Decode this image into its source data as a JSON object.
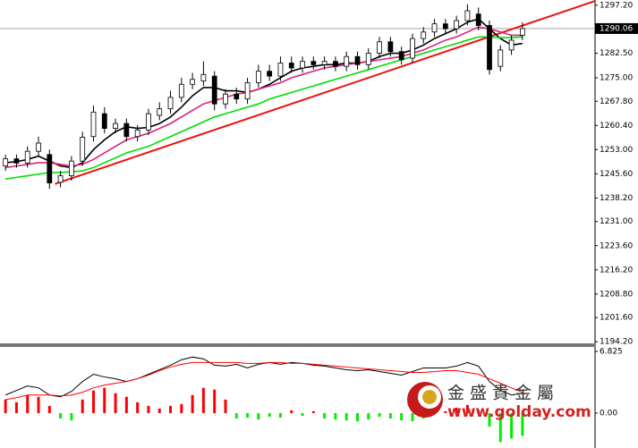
{
  "chart_data": [
    {
      "type": "candlestick",
      "xlim": [
        -0.5,
        53.6
      ],
      "ylim": [
        1193.7,
        1298.8
      ],
      "yticks": [
        {
          "value": 1297.2,
          "label": "1297.20"
        },
        {
          "value": 1282.5,
          "label": "1282.50"
        },
        {
          "value": 1275,
          "label": "1275.00"
        },
        {
          "value": 1267.8,
          "label": "1267.80"
        },
        {
          "value": 1260.4,
          "label": "1260.40"
        },
        {
          "value": 1253,
          "label": "1253.00"
        },
        {
          "value": 1245.6,
          "label": "1245.60"
        },
        {
          "value": 1238.2,
          "label": "1238.20"
        },
        {
          "value": 1231,
          "label": "1231.00"
        },
        {
          "value": 1223.6,
          "label": "1223.60"
        },
        {
          "value": 1216.2,
          "label": "1216.20"
        },
        {
          "value": 1208.8,
          "label": "1208.80"
        },
        {
          "value": 1201.6,
          "label": "1201.60"
        },
        {
          "value": 1194.2,
          "label": "1194.20"
        }
      ],
      "last_price": {
        "value": 1290.06,
        "label": "1290.06"
      },
      "open": [
        1248.0,
        1250.2,
        1248.9,
        1252.5,
        1251.5,
        1243.0,
        1245.0,
        1249.5,
        1257.0,
        1264.0,
        1259.5,
        1261.0,
        1257.0,
        1259.0,
        1263.5,
        1265.5,
        1269.0,
        1273.0,
        1274.0,
        1275.5,
        1267.0,
        1270.0,
        1268.5,
        1273.5,
        1277.0,
        1275.5,
        1279.5,
        1278.0,
        1280.0,
        1279.0,
        1280.0,
        1278.5,
        1281.5,
        1279.0,
        1282.5,
        1286.0,
        1283.0,
        1281.0,
        1287.0,
        1289.0,
        1291.5,
        1290.0,
        1292.5,
        1294.5,
        1291.0,
        1278.5,
        1283.5,
        1288.0
      ],
      "high": [
        1251.5,
        1251.5,
        1254.0,
        1257.0,
        1253.0,
        1246.5,
        1251.0,
        1258.5,
        1266.5,
        1266.0,
        1262.5,
        1262.5,
        1260.5,
        1265.5,
        1267.5,
        1271.0,
        1275.0,
        1276.5,
        1280.0,
        1277.0,
        1271.5,
        1272.0,
        1275.0,
        1279.0,
        1279.0,
        1281.5,
        1281.5,
        1281.5,
        1281.5,
        1281.5,
        1281.5,
        1283.0,
        1283.0,
        1284.0,
        1287.5,
        1287.5,
        1284.5,
        1288.5,
        1290.5,
        1293.0,
        1293.0,
        1294.0,
        1297.5,
        1296.5,
        1292.5,
        1285.0,
        1288.0,
        1292.0
      ],
      "low": [
        1246.5,
        1247.5,
        1247.5,
        1251.0,
        1241.0,
        1241.5,
        1243.5,
        1248.0,
        1255.5,
        1258.0,
        1258.0,
        1255.5,
        1255.5,
        1257.5,
        1262.0,
        1264.0,
        1267.5,
        1271.5,
        1272.5,
        1265.0,
        1265.5,
        1267.0,
        1267.0,
        1272.0,
        1274.0,
        1274.0,
        1276.5,
        1276.5,
        1277.5,
        1277.5,
        1277.0,
        1277.0,
        1277.5,
        1277.5,
        1281.0,
        1281.5,
        1279.0,
        1279.5,
        1285.5,
        1287.5,
        1288.5,
        1288.5,
        1291.0,
        1289.5,
        1276.0,
        1277.0,
        1282.0,
        1286.5
      ],
      "close": [
        1250.2,
        1248.9,
        1252.5,
        1255.0,
        1242.8,
        1245.0,
        1249.5,
        1256.8,
        1264.5,
        1259.5,
        1261.0,
        1257.0,
        1259.0,
        1264.0,
        1265.5,
        1269.0,
        1273.0,
        1274.5,
        1276.0,
        1267.0,
        1270.0,
        1268.5,
        1273.5,
        1277.0,
        1275.5,
        1279.5,
        1278.0,
        1280.0,
        1279.0,
        1280.0,
        1278.5,
        1281.5,
        1279.0,
        1282.5,
        1286.0,
        1283.0,
        1280.5,
        1287.0,
        1289.0,
        1291.5,
        1290.0,
        1292.5,
        1295.5,
        1291.0,
        1277.5,
        1283.5,
        1286.5,
        1290.06
      ],
      "moving_averages": [
        {
          "color": "#000000",
          "values": [
            1249,
            1249.3,
            1250,
            1251,
            1249.5,
            1248,
            1247.5,
            1249,
            1253,
            1256,
            1258.5,
            1260,
            1259.5,
            1259.8,
            1261,
            1263,
            1266,
            1269.5,
            1272,
            1272,
            1271,
            1271,
            1270.5,
            1271.5,
            1273,
            1275,
            1277,
            1278,
            1278.5,
            1279,
            1279,
            1279.5,
            1279.5,
            1280,
            1281.5,
            1282.5,
            1282.5,
            1283.5,
            1285,
            1287,
            1288.5,
            1290,
            1292,
            1293,
            1290,
            1287,
            1285,
            1285.5
          ]
        },
        {
          "color": "#e0207f",
          "values": [
            1247.5,
            1248,
            1248.5,
            1249,
            1249,
            1248.5,
            1248,
            1248.5,
            1250,
            1252,
            1254,
            1256,
            1257,
            1258,
            1259.5,
            1261,
            1263,
            1265,
            1267,
            1268,
            1269,
            1270,
            1270.5,
            1271.5,
            1272.5,
            1273.5,
            1275,
            1276,
            1277,
            1278,
            1278.5,
            1279,
            1279.5,
            1280,
            1280.5,
            1281,
            1281.5,
            1282.5,
            1283.5,
            1285,
            1286.5,
            1287.5,
            1289,
            1290.5,
            1290,
            1289,
            1288,
            1288
          ]
        },
        {
          "color": "#00dd00",
          "values": [
            1244,
            1244.5,
            1245,
            1245.5,
            1246,
            1246,
            1246.2,
            1246.5,
            1247.5,
            1249,
            1250.5,
            1252,
            1253,
            1254,
            1255.5,
            1257,
            1258.5,
            1260,
            1261.5,
            1263,
            1264,
            1265,
            1266,
            1267,
            1268.5,
            1269.5,
            1270.5,
            1271.5,
            1272.5,
            1273.5,
            1274.5,
            1275.5,
            1276.5,
            1277.5,
            1278.5,
            1279.5,
            1280.5,
            1281.5,
            1282.5,
            1283.5,
            1284.5,
            1285.5,
            1286.5,
            1287.5,
            1287.5,
            1287.3,
            1287.3,
            1287.5
          ]
        }
      ],
      "trendline": {
        "color": "#ee1111",
        "x": [
          4.5,
          53.6
        ],
        "y": [
          1242.5,
          1298.5
        ]
      },
      "bull_color": "#ffffff",
      "bear_color": "#000000"
    },
    {
      "type": "bar",
      "ylim": [
        -3.86,
        7.32
      ],
      "yticks": [
        6.825,
        {
          "value": 0,
          "label": "0.00"
        }
      ],
      "values": [
        1.5,
        1.2,
        2.0,
        1.8,
        0.8,
        -0.6,
        -0.8,
        1.5,
        2.5,
        2.8,
        2.2,
        1.8,
        1.2,
        0.8,
        0.5,
        0.8,
        1.0,
        2.0,
        2.8,
        2.6,
        1.5,
        -0.6,
        -0.5,
        -0.7,
        -0.4,
        -0.5,
        0.3,
        -0.3,
        0.2,
        -0.6,
        -0.7,
        -0.8,
        -0.9,
        -0.7,
        -0.4,
        -0.6,
        -0.8,
        -0.9,
        -0.6,
        0.5,
        0.2,
        0.6,
        0.9,
        0.3,
        -1.5,
        -3.2,
        -2.8,
        -2.5
      ],
      "positive_color": "#ff0000",
      "negative_color": "#00ee00",
      "lines": [
        {
          "color": "#000000",
          "values": [
            2.0,
            2.5,
            3.0,
            2.8,
            2.0,
            1.8,
            2.4,
            3.5,
            4.3,
            4.0,
            3.8,
            3.5,
            3.8,
            4.3,
            4.8,
            5.3,
            5.9,
            6.2,
            6.0,
            5.3,
            5.2,
            5.4,
            5.0,
            5.4,
            5.6,
            5.4,
            5.6,
            5.5,
            5.3,
            5.2,
            5.0,
            4.8,
            4.7,
            4.8,
            4.6,
            4.4,
            4.2,
            4.6,
            5.0,
            5.0,
            5.0,
            5.2,
            5.6,
            5.2,
            3.5,
            2.5,
            2.0,
            2.2
          ]
        },
        {
          "color": "#ff0000",
          "values": [
            1.5,
            1.7,
            2.0,
            2.0,
            2.0,
            1.9,
            2.0,
            2.3,
            2.8,
            3.1,
            3.3,
            3.5,
            3.8,
            4.2,
            4.7,
            5.1,
            5.4,
            5.6,
            5.6,
            5.6,
            5.6,
            5.6,
            5.5,
            5.5,
            5.6,
            5.6,
            5.5,
            5.5,
            5.4,
            5.3,
            5.2,
            5.1,
            5.0,
            4.9,
            4.8,
            4.7,
            4.6,
            4.5,
            4.5,
            4.6,
            4.7,
            4.7,
            4.5,
            4.3,
            3.8,
            3.3,
            2.8,
            2.3
          ]
        }
      ]
    }
  ],
  "watermark": {
    "brand": "金 盛 貴 金 屬",
    "url": "www.golday.com"
  }
}
